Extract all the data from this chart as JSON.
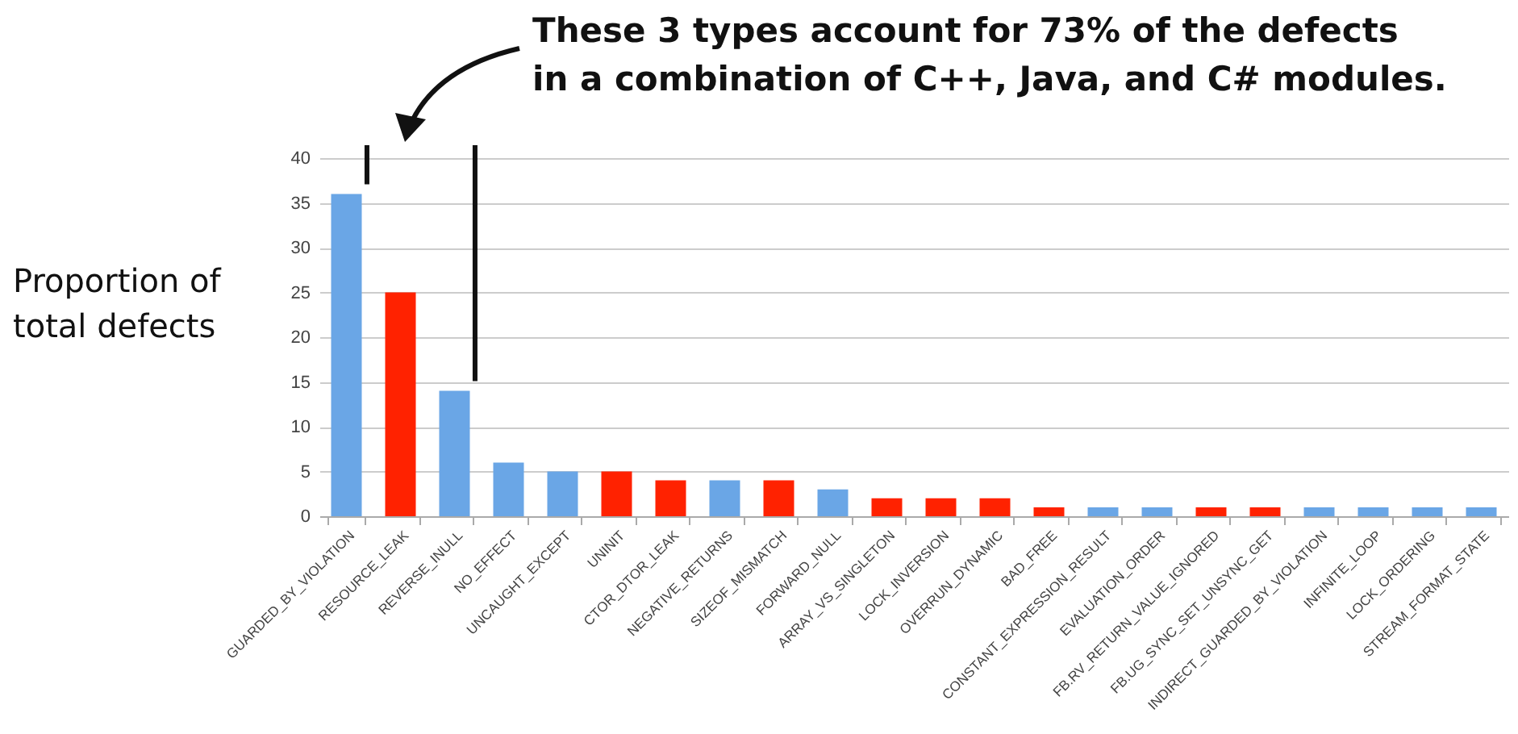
{
  "chart_data": {
    "type": "bar",
    "annotations": [
      "These 3 types account for 73% of the defects in a combination of C++, Java, and C# modules."
    ],
    "ylabel": "Proportion of total defects",
    "categories": [
      "GUARDED_BY_VIOLATION",
      "RESOURCE_LEAK",
      "REVERSE_INULL",
      "NO_EFFECT",
      "UNCAUGHT_EXCEPT",
      "UNINIT",
      "CTOR_DTOR_LEAK",
      "NEGATIVE_RETURNS",
      "SIZEOF_MISMATCH",
      "FORWARD_NULL",
      "ARRAY_VS_SINGLETON",
      "LOCK_INVERSION",
      "OVERRUN_DYNAMIC",
      "BAD_FREE",
      "CONSTANT_EXPRESSION_RESULT",
      "EVALUATION_ORDER",
      "FB.RV_RETURN_VALUE_IGNORED",
      "FB.UG_SYNC_SET_UNSYNC_GET",
      "INDIRECT_GUARDED_BY_VIOLATION",
      "INFINITE_LOOP",
      "LOCK_ORDERING",
      "STREAM_FORMAT_STATE"
    ],
    "values": [
      36,
      25,
      14,
      6,
      5,
      5,
      4,
      4,
      4,
      3,
      2,
      2,
      2,
      1,
      1,
      1,
      1,
      1,
      1,
      1,
      1,
      1
    ],
    "colors": [
      "#6aa6e6",
      "#ff2200",
      "#6aa6e6",
      "#6aa6e6",
      "#6aa6e6",
      "#ff2200",
      "#ff2200",
      "#6aa6e6",
      "#ff2200",
      "#6aa6e6",
      "#ff2200",
      "#ff2200",
      "#ff2200",
      "#ff2200",
      "#6aa6e6",
      "#6aa6e6",
      "#ff2200",
      "#ff2200",
      "#6aa6e6",
      "#6aa6e6",
      "#6aa6e6",
      "#6aa6e6"
    ],
    "ylim": [
      0,
      40
    ],
    "yticks": [
      0,
      5,
      10,
      15,
      20,
      25,
      30,
      35,
      40
    ],
    "grid": "y"
  }
}
